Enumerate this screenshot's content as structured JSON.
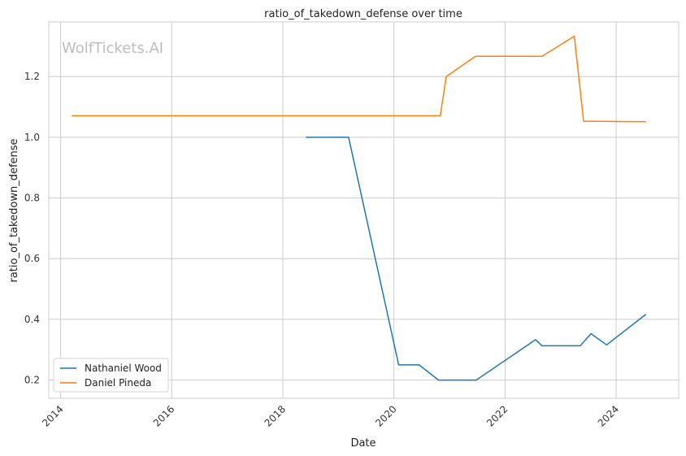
{
  "chart_data": {
    "type": "line",
    "title": "ratio_of_takedown_defense over time",
    "xlabel": "Date",
    "ylabel": "ratio_of_takedown_defense",
    "watermark": "WolfTickets.AI",
    "x_ticks": [
      "2014",
      "2016",
      "2018",
      "2020",
      "2022",
      "2024"
    ],
    "y_ticks": [
      "0.2",
      "0.4",
      "0.6",
      "0.8",
      "1.0",
      "1.2"
    ],
    "xlim": [
      "2013-10-15",
      "2025-02-15"
    ],
    "ylim": [
      0.14,
      1.38
    ],
    "grid": true,
    "legend_position": "lower-left",
    "series": [
      {
        "name": "Nathaniel Wood",
        "color": "#1f77b4",
        "points": [
          [
            "2018-06-01",
            1.0
          ],
          [
            "2019-03-09",
            1.0
          ],
          [
            "2020-02-01",
            0.25
          ],
          [
            "2020-06-15",
            0.25
          ],
          [
            "2020-10-20",
            0.2
          ],
          [
            "2021-06-25",
            0.2
          ],
          [
            "2022-07-20",
            0.333
          ],
          [
            "2022-09-01",
            0.313
          ],
          [
            "2023-05-10",
            0.313
          ],
          [
            "2023-07-20",
            0.353
          ],
          [
            "2023-10-30",
            0.316
          ],
          [
            "2024-07-15",
            0.417
          ]
        ]
      },
      {
        "name": "Daniel Pineda",
        "color": "#ff7f0e",
        "points": [
          [
            "2014-03-15",
            1.071
          ],
          [
            "2020-11-01",
            1.071
          ],
          [
            "2020-12-10",
            1.2
          ],
          [
            "2021-06-20",
            1.267
          ],
          [
            "2022-09-01",
            1.267
          ],
          [
            "2023-04-01",
            1.333
          ],
          [
            "2023-06-01",
            1.053
          ],
          [
            "2024-07-15",
            1.051
          ]
        ]
      }
    ]
  }
}
